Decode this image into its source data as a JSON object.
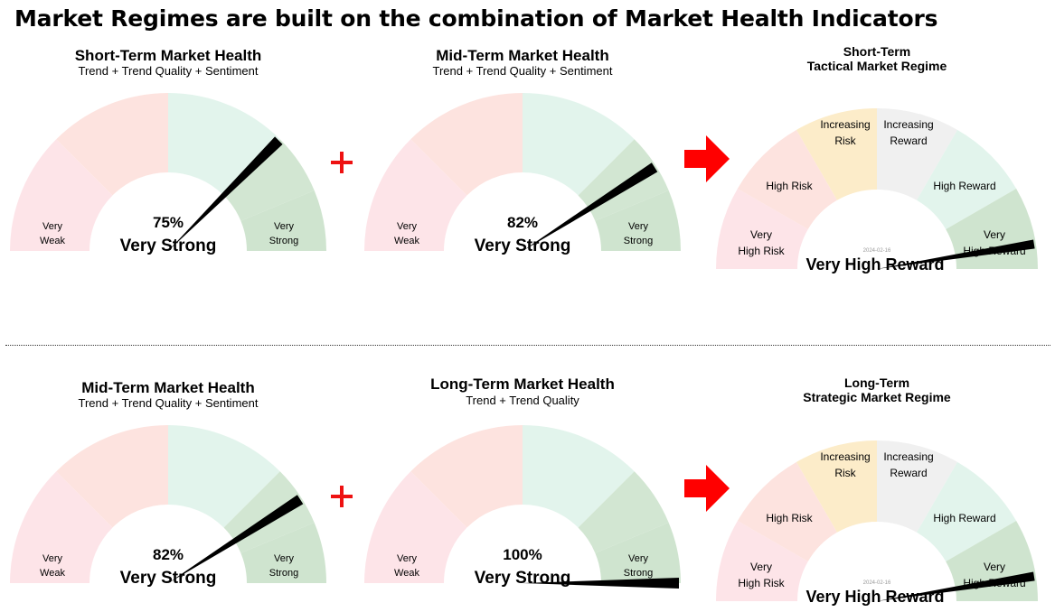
{
  "title": "Market Regimes are built on the combination of Market Health Indicators",
  "colors": {
    "very_weak": "#fde4e8",
    "weak": "#fde3df",
    "strong": "#e2f4ec",
    "very_strong_light": "#d2e6d2",
    "very_strong": "#cfe4cf",
    "increasing_risk": "#fcecc9",
    "increasing_reward": "#f0f0f0",
    "plus": "#ee1111",
    "arrow": "#ff0000",
    "needle": "#000000"
  },
  "rows": [
    {
      "health_left": {
        "title": "Short-Term Market Health",
        "subtitle": "Trend + Trend Quality + Sentiment",
        "value_pct": 75,
        "value_text": "75%",
        "status": "Very Strong",
        "left_label": [
          "Very",
          "Weak"
        ],
        "right_label": [
          "Very",
          "Strong"
        ]
      },
      "health_right": {
        "title": "Mid-Term Market Health",
        "subtitle": "Trend + Trend Quality + Sentiment",
        "value_pct": 82,
        "value_text": "82%",
        "status": "Very Strong",
        "left_label": [
          "Very",
          "Weak"
        ],
        "right_label": [
          "Very",
          "Strong"
        ]
      },
      "regime": {
        "title_line1": "Short-Term",
        "title_line2": "Tactical Market Regime",
        "date": "2024-02-16",
        "status": "Very High Reward",
        "needle_fraction": 0.95,
        "segments": [
          [
            "Very",
            "High Risk"
          ],
          [
            "High Risk"
          ],
          [
            "Increasing",
            "Risk"
          ],
          [
            "Increasing",
            "Reward"
          ],
          [
            "High Reward"
          ],
          [
            "Very",
            "High Reward"
          ]
        ]
      }
    },
    {
      "health_left": {
        "title": "Mid-Term Market Health",
        "subtitle": "Trend + Trend Quality + Sentiment",
        "value_pct": 82,
        "value_text": "82%",
        "status": "Very Strong",
        "left_label": [
          "Very",
          "Weak"
        ],
        "right_label": [
          "Very",
          "Strong"
        ]
      },
      "health_right": {
        "title": "Long-Term Market Health",
        "subtitle": "Trend + Trend Quality",
        "value_pct": 100,
        "value_text": "100%",
        "status": "Very Strong",
        "left_label": [
          "Very",
          "Weak"
        ],
        "right_label": [
          "Very",
          "Strong"
        ]
      },
      "regime": {
        "title_line1": "Long-Term",
        "title_line2": "Strategic Market Regime",
        "date": "2024-02-16",
        "status": "Very High Reward",
        "needle_fraction": 0.95,
        "segments": [
          [
            "Very",
            "High Risk"
          ],
          [
            "High Risk"
          ],
          [
            "Increasing",
            "Risk"
          ],
          [
            "Increasing",
            "Reward"
          ],
          [
            "High Reward"
          ],
          [
            "Very",
            "High Reward"
          ]
        ]
      }
    }
  ]
}
